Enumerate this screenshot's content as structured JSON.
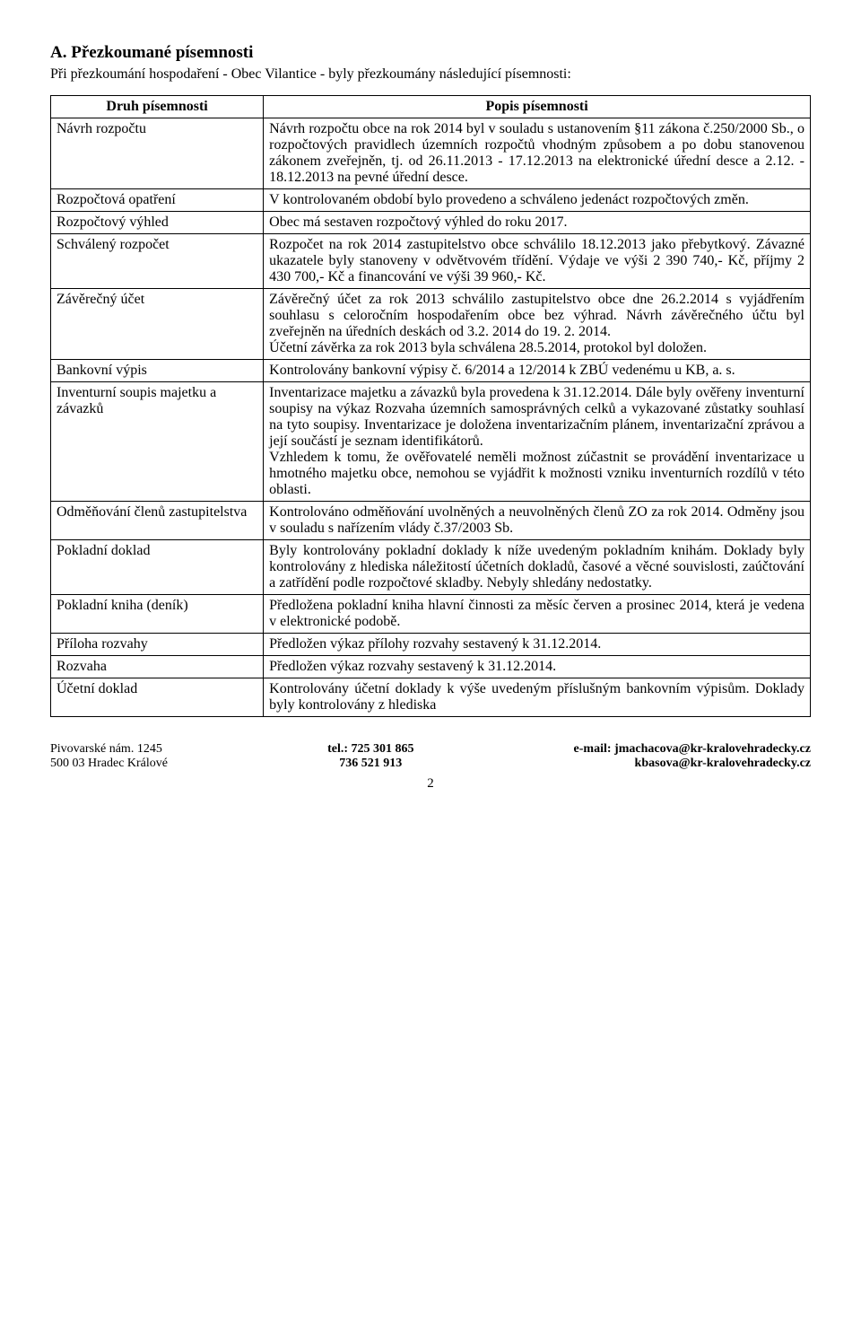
{
  "heading": "A. Přezkoumané písemnosti",
  "intro": "Při přezkoumání hospodaření - Obec Vilantice - byly přezkoumány následující písemnosti:",
  "table": {
    "header_left": "Druh písemnosti",
    "header_right": "Popis písemnosti",
    "rows": [
      {
        "left": "Návrh rozpočtu",
        "right": "Návrh rozpočtu obce na rok 2014 byl v souladu s ustanovením §11 zákona č.250/2000 Sb., o rozpočtových pravidlech územních rozpočtů vhodným způsobem a po dobu stanovenou zákonem zveřejněn, tj. od 26.11.2013 - 17.12.2013 na elektronické úřední desce a 2.12. - 18.12.2013 na pevné úřední desce."
      },
      {
        "left": "Rozpočtová opatření",
        "right": "V kontrolovaném období bylo provedeno a schváleno jedenáct rozpočtových změn."
      },
      {
        "left": "Rozpočtový výhled",
        "right": "Obec má sestaven rozpočtový výhled do roku 2017."
      },
      {
        "left": "Schválený rozpočet",
        "right": "Rozpočet na rok 2014 zastupitelstvo obce schválilo 18.12.2013 jako přebytkový. Závazné ukazatele byly stanoveny v odvětvovém třídění. Výdaje ve výši 2 390 740,- Kč, příjmy 2 430 700,- Kč a financování ve výši 39 960,- Kč."
      },
      {
        "left": "Závěrečný účet",
        "right": "Závěrečný účet za rok 2013 schválilo zastupitelstvo obce dne 26.2.2014 s vyjádřením souhlasu s celoročním hospodařením obce bez výhrad. Návrh závěrečného účtu byl zveřejněn na úředních deskách od 3.2. 2014 do 19. 2. 2014.\nÚčetní závěrka za rok 2013 byla schválena 28.5.2014, protokol byl doložen."
      },
      {
        "left": "Bankovní výpis",
        "right": "Kontrolovány bankovní výpisy č. 6/2014 a 12/2014 k ZBÚ vedenému u KB, a. s."
      },
      {
        "left": "Inventurní soupis majetku a závazků",
        "right": "Inventarizace majetku a závazků byla provedena k 31.12.2014. Dále byly ověřeny inventurní soupisy na výkaz Rozvaha územních samosprávných celků a vykazované zůstatky souhlasí na tyto soupisy. Inventarizace je doložena inventarizačním plánem, inventarizační zprávou a její součástí je seznam identifikátorů.\nVzhledem k tomu, že ověřovatelé neměli možnost zúčastnit se provádění inventarizace u hmotného majetku obce, nemohou se vyjádřit k možnosti vzniku inventurních rozdílů v této oblasti."
      },
      {
        "left": "Odměňování členů zastupitelstva",
        "right": "Kontrolováno odměňování uvolněných a neuvolněných členů ZO za rok 2014. Odměny jsou v souladu s nařízením vlády č.37/2003 Sb."
      },
      {
        "left": "Pokladní doklad",
        "right": "Byly kontrolovány pokladní doklady k níže uvedeným pokladním knihám. Doklady byly kontrolovány z hlediska náležitostí účetních dokladů, časové a věcné souvislosti, zaúčtování a zatřídění podle rozpočtové skladby. Nebyly shledány nedostatky."
      },
      {
        "left": "Pokladní kniha (deník)",
        "right": "Předložena pokladní kniha hlavní činnosti za měsíc červen a prosinec 2014, která je vedena v elektronické podobě."
      },
      {
        "left": "Příloha rozvahy",
        "right": "Předložen výkaz přílohy rozvahy sestavený k 31.12.2014."
      },
      {
        "left": "Rozvaha",
        "right": "Předložen výkaz rozvahy sestavený k 31.12.2014."
      },
      {
        "left": "Účetní doklad",
        "right": "Kontrolovány účetní doklady k výše uvedeným příslušným bankovním výpisům. Doklady byly kontrolovány z hlediska"
      }
    ]
  },
  "footer": {
    "left1": "Pivovarské nám. 1245",
    "left2": "500 03 Hradec Králové",
    "mid1": "tel.: 725 301 865",
    "mid2": "736 521 913",
    "right1": "e-mail: jmachacova@kr-kralovehradecky.cz",
    "right2": "kbasova@kr-kralovehradecky.cz"
  },
  "page_number": "2"
}
